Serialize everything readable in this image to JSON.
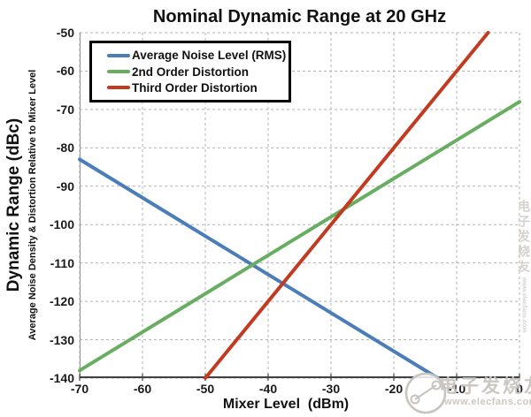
{
  "title": "Nominal Dynamic Range at 20 GHz",
  "axes": {
    "x": {
      "label": "Mixer Level  (dBm)"
    },
    "y": {
      "label_primary": "Dynamic Range (dBc)",
      "label_secondary": "Average Noise Density & Distortion Relative to Mixer Level"
    }
  },
  "chart_data": {
    "type": "line",
    "title": "Nominal Dynamic Range at 20 GHz",
    "xlabel": "Mixer Level (dBm)",
    "ylabel": "Dynamic Range (dBc)",
    "ylabel_secondary": "Average Noise Density & Distortion Relative to Mixer Level",
    "xlim": [
      -70,
      0
    ],
    "ylim": [
      -140,
      -50
    ],
    "x_ticks": [
      -70,
      -60,
      -50,
      -40,
      -30,
      -20,
      -10,
      0
    ],
    "y_ticks": [
      -50,
      -60,
      -70,
      -80,
      -90,
      -100,
      -110,
      -120,
      -130,
      -140
    ],
    "grid": true,
    "grid_style": "dashed",
    "legend_position": "top-left-inside",
    "series": [
      {
        "name": "Average Noise Level (RMS)",
        "color": "#4B7DB8",
        "points": [
          [
            -70,
            -83
          ],
          [
            -13,
            -140
          ]
        ]
      },
      {
        "name": "2nd Order Distortion",
        "color": "#67AE61",
        "points": [
          [
            -70,
            -138
          ],
          [
            0,
            -68
          ]
        ]
      },
      {
        "name": "Third Order Distortion",
        "color": "#C23B20",
        "points": [
          [
            -50,
            -140
          ],
          [
            -5,
            -50
          ]
        ]
      }
    ]
  },
  "watermark": {
    "cn": "电子发烧友",
    "url": "www.elecfans.com"
  },
  "appearance": {
    "background": "#FFFFFF",
    "grid_color": "#B3B3B3",
    "axis_bottom_color": "#404040",
    "axis_left_color": "#999999",
    "text_color": "#1A1A1A",
    "legend_border": "#000000",
    "watermark_color": "#C9C5C0"
  }
}
